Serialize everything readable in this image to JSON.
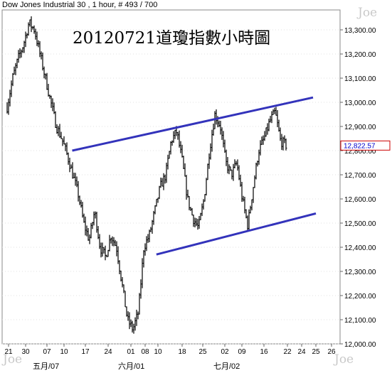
{
  "header": {
    "instrument_info": "Dow Jones Industrial 30 , 1 hour, # 493 / 700"
  },
  "watermark": "Joe",
  "colors": {
    "price_bars": "#000000",
    "channel_lines": "#3333bb",
    "last_price_box": "#cc0000",
    "last_price_text": "#0000cc",
    "grid": "#d8d8d8"
  },
  "chart_data": {
    "type": "line",
    "title": "20120721道瓊指數小時圖",
    "style": "hourly OHLC bars",
    "ylim": [
      12000,
      13400
    ],
    "y_ticks": [
      "12,000.00",
      "12,100.00",
      "12,200.00",
      "12,300.00",
      "12,400.00",
      "12,500.00",
      "12,600.00",
      "12,700.00",
      "12,800.00",
      "12,900.00",
      "13,000.00",
      "13,100.00",
      "13,200.00",
      "13,300.00"
    ],
    "x_ticks": [
      "21",
      "30",
      "07",
      "10",
      "17",
      "24",
      "01",
      "08",
      "10",
      "18",
      "25",
      "02",
      "09",
      "16",
      "22",
      "24",
      "25",
      "26"
    ],
    "x_month_labels": [
      {
        "label": "五月/07",
        "tick_index": 2
      },
      {
        "label": "六月/01",
        "tick_index": 6
      },
      {
        "label": "七月/02",
        "tick_index": 11
      }
    ],
    "last_price": "12,822.57",
    "price_path": [
      [
        0,
        12980
      ],
      [
        1,
        13100
      ],
      [
        2,
        13180
      ],
      [
        3,
        13240
      ],
      [
        4,
        13330
      ],
      [
        5,
        13300
      ],
      [
        6,
        13200
      ],
      [
        7,
        13100
      ],
      [
        8,
        13000
      ],
      [
        9,
        12900
      ],
      [
        10,
        12850
      ],
      [
        11,
        12780
      ],
      [
        12,
        12700
      ],
      [
        13,
        12620
      ],
      [
        14,
        12500
      ],
      [
        15,
        12430
      ],
      [
        16,
        12550
      ],
      [
        17,
        12400
      ],
      [
        18,
        12360
      ],
      [
        19,
        12450
      ],
      [
        20,
        12400
      ],
      [
        21,
        12250
      ],
      [
        22,
        12100
      ],
      [
        23,
        12060
      ],
      [
        24,
        12130
      ],
      [
        25,
        12400
      ],
      [
        26,
        12450
      ],
      [
        27,
        12550
      ],
      [
        28,
        12650
      ],
      [
        29,
        12700
      ],
      [
        30,
        12840
      ],
      [
        31,
        12880
      ],
      [
        32,
        12760
      ],
      [
        33,
        12600
      ],
      [
        34,
        12520
      ],
      [
        35,
        12480
      ],
      [
        36,
        12600
      ],
      [
        37,
        12800
      ],
      [
        38,
        12950
      ],
      [
        39,
        12900
      ],
      [
        40,
        12750
      ],
      [
        41,
        12700
      ],
      [
        42,
        12750
      ],
      [
        43,
        12600
      ],
      [
        44,
        12490
      ],
      [
        45,
        12650
      ],
      [
        46,
        12800
      ],
      [
        47,
        12850
      ],
      [
        48,
        12920
      ],
      [
        49,
        12960
      ],
      [
        50,
        12840
      ],
      [
        51,
        12822.57
      ]
    ],
    "trend_channel": {
      "upper": [
        [
          8,
          12800
        ],
        [
          54,
          13020
        ]
      ],
      "lower": [
        [
          26,
          12370
        ],
        [
          54,
          12540
        ]
      ]
    }
  }
}
